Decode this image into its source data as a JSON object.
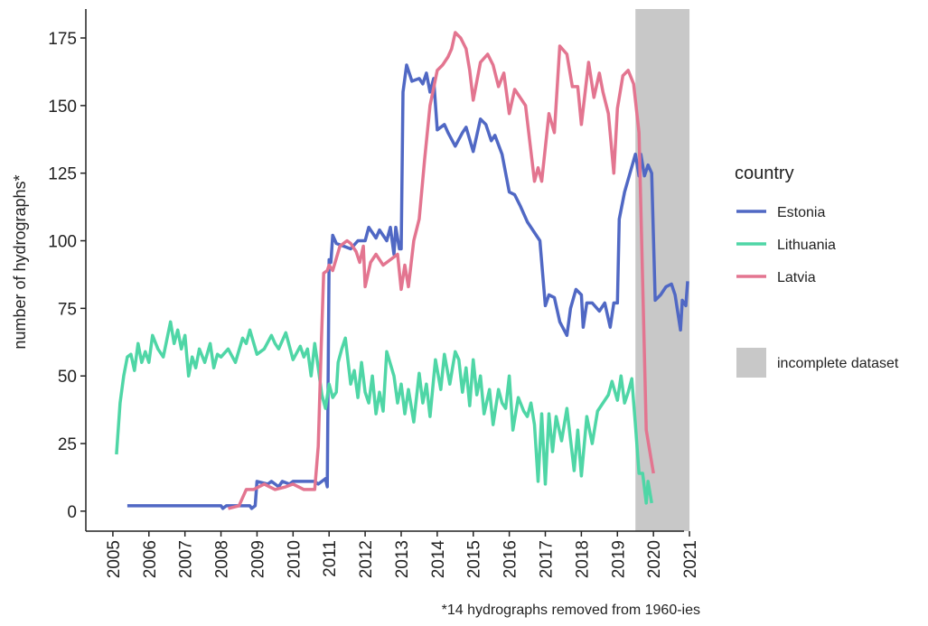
{
  "chart_data": {
    "type": "line",
    "y_label": "number of hydrographs*",
    "note": "*14 hydrographs removed from 1960-ies",
    "legend_title": "country",
    "shade": {
      "label": "incomplete dataset",
      "xlim": [
        2019.5,
        2021
      ],
      "color": "#c8c8c8"
    },
    "xlim": [
      2004.25,
      2021.3
    ],
    "xticks": [
      2005,
      2006,
      2007,
      2008,
      2009,
      2010,
      2011,
      2012,
      2013,
      2014,
      2015,
      2016,
      2017,
      2018,
      2019,
      2020,
      2021
    ],
    "ylim": [
      -9.4,
      185.7
    ],
    "yticks": [
      0,
      25,
      50,
      75,
      100,
      125,
      150,
      175
    ],
    "series": [
      {
        "name": "Estonia",
        "color": "#5068c4",
        "x": [
          2005.4,
          2008.0,
          2008.05,
          2008.15,
          2008.8,
          2008.85,
          2008.95,
          2009.0,
          2009.3,
          2009.4,
          2009.6,
          2009.7,
          2009.9,
          2010.0,
          2010.6,
          2010.7,
          2010.8,
          2010.9,
          2010.95,
          2011.0,
          2011.05,
          2011.1,
          2011.2,
          2011.4,
          2011.6,
          2011.8,
          2012.0,
          2012.1,
          2012.3,
          2012.4,
          2012.6,
          2012.7,
          2012.8,
          2012.85,
          2012.95,
          2013.0,
          2013.05,
          2013.15,
          2013.3,
          2013.5,
          2013.6,
          2013.7,
          2013.8,
          2013.9,
          2014.0,
          2014.2,
          2014.3,
          2014.5,
          2014.7,
          2014.8,
          2015.0,
          2015.2,
          2015.35,
          2015.5,
          2015.6,
          2015.8,
          2016.0,
          2016.15,
          2016.3,
          2016.5,
          2016.7,
          2016.85,
          2017.0,
          2017.1,
          2017.25,
          2017.4,
          2017.6,
          2017.7,
          2017.85,
          2018.0,
          2018.05,
          2018.15,
          2018.3,
          2018.5,
          2018.65,
          2018.8,
          2018.9,
          2019.0,
          2019.05,
          2019.2,
          2019.35,
          2019.5,
          2019.6,
          2019.65,
          2019.75,
          2019.85,
          2019.95,
          2020.05,
          2020.2,
          2020.35,
          2020.5,
          2020.6,
          2020.75,
          2020.8,
          2020.9,
          2020.95
        ],
        "values": [
          2,
          2,
          1,
          2,
          2,
          1,
          2,
          11,
          10,
          11,
          9,
          11,
          10,
          11,
          11,
          10,
          11,
          12,
          9,
          93,
          92,
          102,
          99,
          98,
          97,
          100,
          100,
          105,
          101,
          104,
          100,
          105,
          95,
          105,
          97,
          97,
          155,
          165,
          159,
          160,
          158,
          162,
          155,
          160,
          141,
          143,
          140,
          135,
          140,
          142,
          133,
          145,
          143,
          137,
          139,
          132,
          118,
          117,
          113,
          107,
          103,
          100,
          76,
          80,
          79,
          70,
          65,
          75,
          82,
          80,
          68,
          77,
          77,
          74,
          77,
          68,
          77,
          77,
          108,
          118,
          125,
          132,
          124,
          132,
          124,
          128,
          125,
          78,
          80,
          83,
          84,
          80,
          67,
          78,
          76,
          85
        ]
      },
      {
        "name": "Lithuania",
        "color": "#4fd6a6",
        "x": [
          2005.1,
          2005.2,
          2005.3,
          2005.4,
          2005.5,
          2005.6,
          2005.7,
          2005.8,
          2005.9,
          2006.0,
          2006.1,
          2006.25,
          2006.4,
          2006.6,
          2006.7,
          2006.8,
          2006.9,
          2007.0,
          2007.1,
          2007.2,
          2007.3,
          2007.4,
          2007.55,
          2007.7,
          2007.8,
          2007.9,
          2008.0,
          2008.2,
          2008.4,
          2008.6,
          2008.7,
          2008.8,
          2009.0,
          2009.2,
          2009.4,
          2009.5,
          2009.6,
          2009.8,
          2010.0,
          2010.2,
          2010.3,
          2010.4,
          2010.5,
          2010.6,
          2010.7,
          2010.8,
          2010.9,
          2011.0,
          2011.1,
          2011.2,
          2011.25,
          2011.35,
          2011.45,
          2011.6,
          2011.7,
          2011.8,
          2011.9,
          2012.0,
          2012.1,
          2012.2,
          2012.3,
          2012.4,
          2012.5,
          2012.6,
          2012.8,
          2012.9,
          2013.0,
          2013.1,
          2013.2,
          2013.35,
          2013.5,
          2013.6,
          2013.7,
          2013.8,
          2013.95,
          2014.1,
          2014.2,
          2014.35,
          2014.5,
          2014.6,
          2014.7,
          2014.8,
          2014.9,
          2015.0,
          2015.1,
          2015.2,
          2015.3,
          2015.45,
          2015.55,
          2015.7,
          2015.8,
          2015.9,
          2016.0,
          2016.1,
          2016.25,
          2016.4,
          2016.5,
          2016.6,
          2016.7,
          2016.8,
          2016.9,
          2017.0,
          2017.1,
          2017.2,
          2017.3,
          2017.45,
          2017.6,
          2017.8,
          2017.9,
          2018.0,
          2018.15,
          2018.3,
          2018.45,
          2018.6,
          2018.75,
          2018.85,
          2019.0,
          2019.1,
          2019.2,
          2019.3,
          2019.4,
          2019.5,
          2019.6,
          2019.7,
          2019.8,
          2019.85,
          2019.95
        ],
        "values": [
          21,
          40,
          50,
          57,
          58,
          52,
          62,
          55,
          59,
          55,
          65,
          60,
          57,
          70,
          62,
          67,
          60,
          65,
          50,
          57,
          53,
          60,
          55,
          62,
          53,
          58,
          57,
          60,
          55,
          64,
          62,
          67,
          58,
          60,
          65,
          62,
          60,
          66,
          56,
          61,
          57,
          60,
          50,
          62,
          53,
          43,
          38,
          47,
          42,
          44,
          55,
          60,
          64,
          47,
          52,
          42,
          55,
          44,
          40,
          50,
          36,
          44,
          37,
          59,
          50,
          40,
          47,
          36,
          45,
          33,
          51,
          40,
          47,
          35,
          56,
          45,
          58,
          47,
          59,
          56,
          44,
          53,
          39,
          56,
          43,
          50,
          36,
          45,
          32,
          45,
          40,
          38,
          50,
          30,
          42,
          37,
          35,
          40,
          32,
          11,
          36,
          10,
          36,
          22,
          35,
          26,
          38,
          15,
          30,
          13,
          35,
          25,
          37,
          40,
          43,
          48,
          41,
          50,
          40,
          44,
          49,
          32,
          14,
          14,
          3,
          11,
          3
        ]
      },
      {
        "name": "Latvia",
        "color": "#e37590",
        "x": [
          2008.2,
          2008.5,
          2008.7,
          2008.9,
          2009.2,
          2009.5,
          2009.8,
          2010.0,
          2010.3,
          2010.6,
          2010.7,
          2010.78,
          2010.85,
          2010.95,
          2011.0,
          2011.1,
          2011.3,
          2011.5,
          2011.6,
          2011.75,
          2011.85,
          2011.95,
          2012.0,
          2012.15,
          2012.3,
          2012.5,
          2012.7,
          2012.9,
          2013.0,
          2013.1,
          2013.2,
          2013.35,
          2013.5,
          2013.65,
          2013.8,
          2014.0,
          2014.15,
          2014.3,
          2014.4,
          2014.5,
          2014.65,
          2014.8,
          2014.9,
          2015.0,
          2015.2,
          2015.4,
          2015.55,
          2015.7,
          2015.85,
          2016.0,
          2016.15,
          2016.3,
          2016.45,
          2016.7,
          2016.8,
          2016.9,
          2017.1,
          2017.25,
          2017.4,
          2017.6,
          2017.75,
          2017.9,
          2018.0,
          2018.2,
          2018.35,
          2018.5,
          2018.6,
          2018.75,
          2018.9,
          2019.0,
          2019.15,
          2019.3,
          2019.45,
          2019.6,
          2019.8,
          2020.0
        ],
        "values": [
          1,
          2,
          8,
          8,
          10,
          8,
          9,
          10,
          8,
          8,
          24,
          60,
          88,
          89,
          91,
          89,
          98,
          100,
          99,
          96,
          92,
          98,
          83,
          92,
          95,
          91,
          93,
          95,
          82,
          91,
          83,
          100,
          108,
          130,
          150,
          163,
          165,
          168,
          171,
          177,
          175,
          171,
          163,
          152,
          166,
          169,
          165,
          157,
          162,
          147,
          156,
          153,
          150,
          122,
          127,
          122,
          147,
          140,
          172,
          169,
          157,
          157,
          143,
          166,
          153,
          162,
          155,
          147,
          125,
          149,
          161,
          163,
          158,
          140,
          30,
          14
        ]
      }
    ]
  }
}
